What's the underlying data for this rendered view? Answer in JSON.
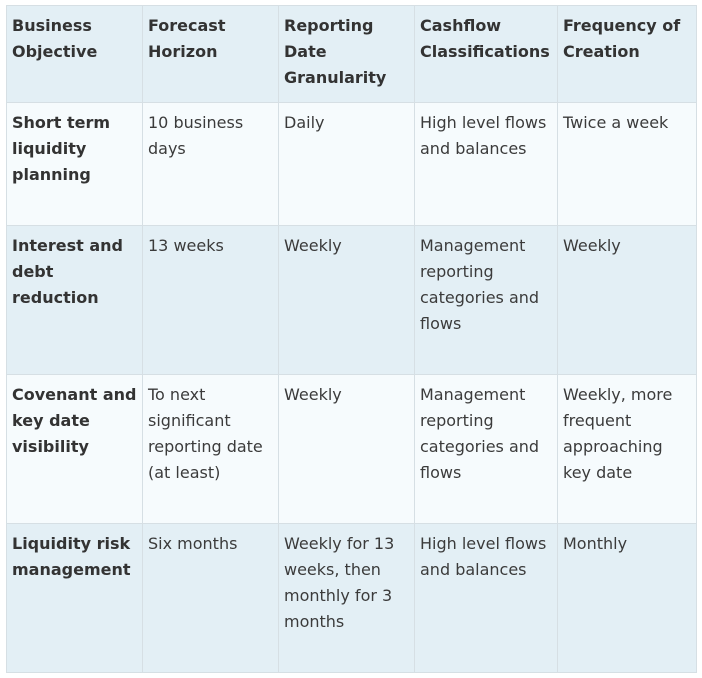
{
  "table": {
    "headers": [
      "Business Objective",
      "Forecast Horizon",
      "Reporting Date Granularity",
      "Cashflow Classifications",
      "Frequency of Creation"
    ],
    "rows": [
      [
        "Short term liquidity planning",
        "10 business days",
        "Daily",
        "High level flows and balances",
        "Twice a week"
      ],
      [
        "Interest and debt reduction",
        "13 weeks",
        "Weekly",
        "Management reporting categories and flows",
        "Weekly"
      ],
      [
        "Covenant and key date visibility",
        "To next significant reporting date (at least)",
        "Weekly",
        "Management reporting categories and flows",
        "Weekly, more frequent approaching key date"
      ],
      [
        "Liquidity risk management",
        "Six months",
        "Weekly for 13 weeks, then monthly for 3 months",
        "High level flows and balances",
        "Monthly"
      ]
    ]
  }
}
